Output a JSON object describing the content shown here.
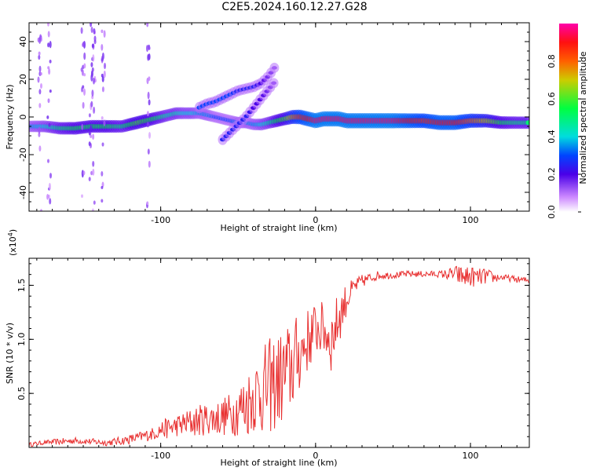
{
  "title": "C2E5.2024.160.12.27.G28",
  "chart_data": [
    {
      "type": "heatmap",
      "title": "C2E5.2024.160.12.27.G28",
      "xlabel": "Height of straight line (km)",
      "ylabel": "Frequency (Hz)",
      "xlim": [
        -185,
        138
      ],
      "ylim": [
        -50,
        50
      ],
      "x_ticks": [
        -100,
        0,
        100
      ],
      "x_tick_labels": [
        "-100",
        "0",
        "100"
      ],
      "y_ticks": [
        -40,
        -20,
        0,
        20,
        40
      ],
      "y_tick_labels": [
        "-40",
        "-20",
        "0",
        "20",
        "40"
      ],
      "colorbar": {
        "label": "Normalized spectral amplitude",
        "range": [
          0,
          1
        ],
        "ticks": [
          0.0,
          0.2,
          0.4,
          0.6,
          0.8
        ],
        "tick_labels": [
          "0.0",
          "0.2",
          "0.4",
          "0.6",
          "0.8"
        ]
      },
      "series": [
        {
          "x": [
            -185,
            -175,
            -165,
            -155,
            -145,
            -135,
            -125,
            -115,
            -105,
            -100,
            -95,
            -90,
            -85,
            -80,
            -75,
            -70,
            -65,
            -60,
            -55,
            -50,
            -45,
            -40,
            -35,
            -30,
            -25,
            -20,
            -15,
            -10,
            -5,
            0,
            5,
            10,
            15,
            20,
            30,
            40,
            50,
            60,
            70,
            80,
            90,
            100,
            110,
            120,
            130,
            138
          ],
          "y": [
            -5,
            -5,
            -6,
            -6,
            -5,
            -5,
            -5,
            -3,
            -1,
            0,
            1,
            2,
            2,
            2,
            2,
            1,
            0,
            -1,
            -2,
            -3,
            -3,
            -4,
            -4,
            -3,
            -2,
            -1,
            0,
            0,
            -1,
            -2,
            -1,
            -1,
            -1,
            -2,
            -2,
            -2,
            -2,
            -2,
            -2,
            -3,
            -3,
            -2,
            -2,
            -3,
            -3,
            -3
          ],
          "amplitude": [
            0.35,
            0.4,
            0.5,
            0.55,
            0.55,
            0.55,
            0.5,
            0.6,
            0.55,
            0.5,
            0.45,
            0.45,
            0.4,
            0.4,
            0.35,
            0.35,
            0.3,
            0.3,
            0.3,
            0.35,
            0.35,
            0.35,
            0.4,
            0.45,
            0.55,
            0.6,
            0.75,
            0.85,
            0.9,
            0.95,
            0.95,
            0.95,
            0.95,
            0.95,
            0.95,
            0.95,
            0.95,
            0.9,
            0.85,
            0.9,
            0.9,
            0.8,
            0.7,
            0.55,
            0.5,
            0.5
          ]
        },
        {
          "x": [
            -75,
            -70,
            -65,
            -60,
            -55,
            -50,
            -45,
            -40,
            -35,
            -30,
            -25
          ],
          "y": [
            5,
            7,
            8,
            10,
            12,
            14,
            15,
            16,
            18,
            22,
            28
          ],
          "amplitude": [
            0.3,
            0.3,
            0.3,
            0.3,
            0.3,
            0.25,
            0.25,
            0.25,
            0.2,
            0.15,
            0.1
          ]
        },
        {
          "x": [
            -60,
            -55,
            -50,
            -45,
            -40,
            -35,
            -30,
            -25
          ],
          "y": [
            -12,
            -8,
            -4,
            0,
            5,
            10,
            15,
            20
          ],
          "amplitude": [
            0.25,
            0.25,
            0.25,
            0.25,
            0.2,
            0.2,
            0.15,
            0.1
          ]
        }
      ]
    },
    {
      "type": "line",
      "xlabel": "Height of straight line (km)",
      "ylabel": "SNR (10 * v/v)",
      "y_multiplier": "(x10",
      "y_multiplier_exponent": "4",
      "y_multiplier_close": ")",
      "xlim": [
        -185,
        138
      ],
      "ylim": [
        0,
        1.75
      ],
      "x_ticks": [
        -100,
        0,
        100
      ],
      "x_tick_labels": [
        "-100",
        "0",
        "100"
      ],
      "y_ticks": [
        0.5,
        1.0,
        1.5
      ],
      "y_tick_labels": [
        "0.5",
        "1.0",
        "1.5"
      ],
      "color": "#e83030",
      "series": [
        {
          "x": [
            -185,
            -175,
            -165,
            -155,
            -145,
            -135,
            -125,
            -115,
            -105,
            -100,
            -95,
            -90,
            -85,
            -80,
            -75,
            -70,
            -65,
            -60,
            -55,
            -50,
            -45,
            -40,
            -35,
            -30,
            -25,
            -20,
            -15,
            -10,
            -5,
            0,
            5,
            10,
            15,
            20,
            25,
            30,
            40,
            50,
            60,
            70,
            80,
            85,
            90,
            95,
            100,
            105,
            110,
            115,
            120,
            125,
            130,
            138
          ],
          "y": [
            0.03,
            0.05,
            0.06,
            0.07,
            0.06,
            0.05,
            0.07,
            0.1,
            0.14,
            0.18,
            0.2,
            0.22,
            0.24,
            0.26,
            0.28,
            0.3,
            0.3,
            0.32,
            0.35,
            0.4,
            0.45,
            0.55,
            0.6,
            0.65,
            0.7,
            0.75,
            0.85,
            0.95,
            1.05,
            1.15,
            1.15,
            1.05,
            1.25,
            1.4,
            1.5,
            1.55,
            1.6,
            1.6,
            1.61,
            1.61,
            1.61,
            1.61,
            1.62,
            1.6,
            1.6,
            1.59,
            1.6,
            1.58,
            1.58,
            1.57,
            1.56,
            1.55
          ],
          "noise": [
            0.02,
            0.02,
            0.03,
            0.03,
            0.03,
            0.03,
            0.04,
            0.05,
            0.06,
            0.08,
            0.1,
            0.1,
            0.12,
            0.14,
            0.15,
            0.15,
            0.16,
            0.18,
            0.2,
            0.25,
            0.3,
            0.35,
            0.4,
            0.45,
            0.45,
            0.45,
            0.45,
            0.35,
            0.3,
            0.25,
            0.25,
            0.3,
            0.25,
            0.15,
            0.08,
            0.06,
            0.04,
            0.03,
            0.03,
            0.03,
            0.03,
            0.05,
            0.08,
            0.1,
            0.1,
            0.08,
            0.08,
            0.05,
            0.03,
            0.03,
            0.03,
            0.03
          ]
        }
      ]
    }
  ]
}
